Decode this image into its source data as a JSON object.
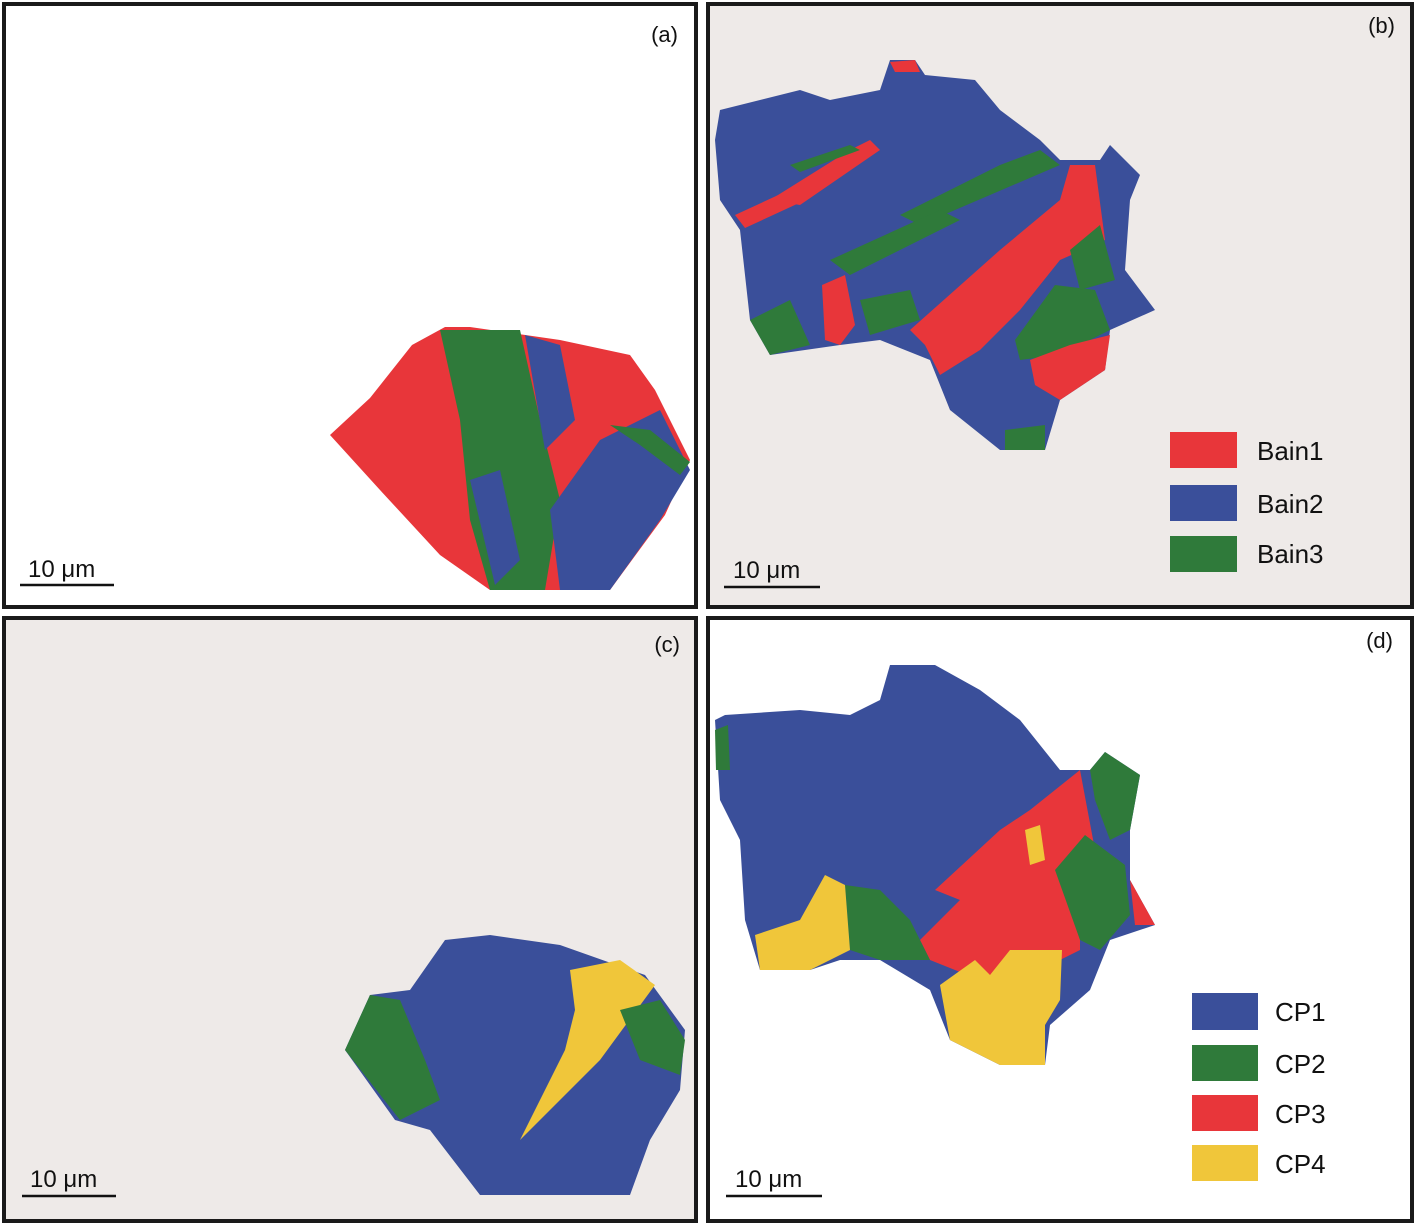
{
  "panels": [
    {
      "label": "(a)",
      "scale_bar": "10 μm"
    },
    {
      "label": "(b)",
      "scale_bar": "10 μm",
      "legend": [
        "Bain1",
        "Bain2",
        "Bain3"
      ]
    },
    {
      "label": "(c)",
      "scale_bar": "10 μm"
    },
    {
      "label": "(d)",
      "scale_bar": "10 μm",
      "legend": [
        "CP1",
        "CP2",
        "CP3",
        "CP4"
      ]
    }
  ]
}
